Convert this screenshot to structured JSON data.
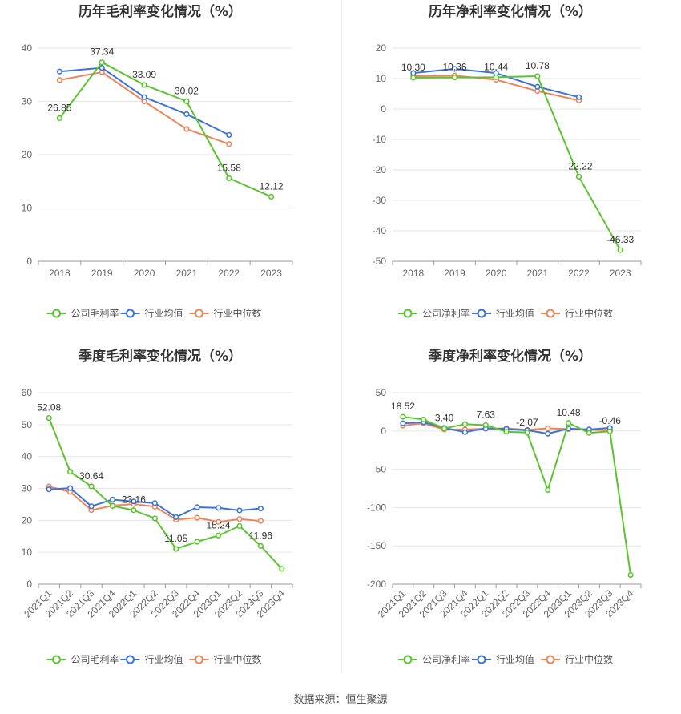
{
  "colors": {
    "company": "#5ac42e",
    "industry_avg": "#3b73d8",
    "industry_median": "#f08458",
    "grid": "#e6e6e6",
    "axis": "#999999"
  },
  "source": "数据来源：恒生聚源",
  "legend": {
    "company_gross": "公司毛利率",
    "company_net": "公司净利率",
    "avg": "行业均值",
    "median": "行业中位数"
  },
  "chart_data": [
    {
      "type": "line",
      "title": "历年毛利率变化情况（%）",
      "categories": [
        "2018",
        "2019",
        "2020",
        "2021",
        "2022",
        "2023"
      ],
      "ylim": [
        0,
        40
      ],
      "yticks": [
        0,
        10,
        20,
        30,
        40
      ],
      "grid": true,
      "legend_position": "bottom",
      "series": [
        {
          "name": "公司毛利率",
          "values": [
            26.85,
            37.34,
            33.09,
            30.02,
            15.58,
            12.12
          ],
          "labels": [
            "26.85",
            "37.34",
            "33.09",
            "30.02",
            "15.58",
            "12.12"
          ]
        },
        {
          "name": "行业均值",
          "values": [
            35.6,
            36.3,
            30.8,
            27.6,
            23.7,
            null
          ]
        },
        {
          "name": "行业中位数",
          "values": [
            34.0,
            35.5,
            30.0,
            24.8,
            22.0,
            null
          ]
        }
      ]
    },
    {
      "type": "line",
      "title": "历年净利率变化情况（%）",
      "categories": [
        "2018",
        "2019",
        "2020",
        "2021",
        "2022",
        "2023"
      ],
      "ylim": [
        -50,
        20
      ],
      "yticks": [
        -50,
        -40,
        -30,
        -20,
        -10,
        0,
        10,
        20
      ],
      "grid": true,
      "legend_position": "bottom",
      "series": [
        {
          "name": "公司净利率",
          "values": [
            10.3,
            10.36,
            10.44,
            10.78,
            -22.22,
            -46.33
          ],
          "labels": [
            "10.30",
            "10.36",
            "10.44",
            "10.78",
            "-22.22",
            "-46.33"
          ]
        },
        {
          "name": "行业均值",
          "values": [
            11.8,
            13.2,
            11.8,
            7.3,
            3.9,
            null
          ]
        },
        {
          "name": "行业中位数",
          "values": [
            10.8,
            11.0,
            9.6,
            5.9,
            2.8,
            null
          ]
        }
      ]
    },
    {
      "type": "line",
      "title": "季度毛利率变化情况（%）",
      "categories": [
        "2021Q1",
        "2021Q2",
        "2021Q3",
        "2021Q4",
        "2022Q1",
        "2022Q2",
        "2022Q3",
        "2022Q4",
        "2023Q1",
        "2023Q2",
        "2023Q3",
        "2023Q4"
      ],
      "ylim": [
        0,
        60
      ],
      "yticks": [
        0,
        10,
        20,
        30,
        40,
        50,
        60
      ],
      "grid": true,
      "legend_position": "bottom",
      "series": [
        {
          "name": "公司毛利率",
          "values": [
            52.08,
            35.2,
            30.64,
            24.5,
            23.16,
            20.6,
            11.05,
            13.3,
            15.24,
            18.2,
            11.96,
            4.8
          ],
          "labels": [
            "52.08",
            "",
            "30.64",
            "",
            "23.16",
            "",
            "11.05",
            "",
            "15.24",
            "",
            "11.96",
            ""
          ]
        },
        {
          "name": "行业均值",
          "values": [
            29.7,
            30.1,
            24.4,
            26.5,
            25.9,
            25.4,
            21.0,
            24.1,
            23.9,
            23.1,
            23.7,
            null
          ]
        },
        {
          "name": "行业中位数",
          "values": [
            30.6,
            28.9,
            23.2,
            24.6,
            25.1,
            24.3,
            20.2,
            20.8,
            19.5,
            20.4,
            19.8,
            null
          ]
        }
      ]
    },
    {
      "type": "line",
      "title": "季度净利率变化情况（%）",
      "categories": [
        "2021Q1",
        "2021Q2",
        "2021Q3",
        "2021Q4",
        "2022Q1",
        "2022Q2",
        "2022Q3",
        "2022Q4",
        "2023Q1",
        "2023Q2",
        "2023Q3",
        "2023Q4"
      ],
      "ylim": [
        -200,
        50
      ],
      "yticks": [
        -200,
        -150,
        -100,
        -50,
        0,
        50
      ],
      "grid": true,
      "legend_position": "bottom",
      "series": [
        {
          "name": "公司净利率",
          "values": [
            18.52,
            15.0,
            3.4,
            9.0,
            7.63,
            -1.0,
            -2.07,
            -77.0,
            10.48,
            -2.5,
            -0.46,
            -188.0
          ],
          "labels": [
            "18.52",
            "",
            "3.40",
            "",
            "7.63",
            "",
            "-2.07",
            "",
            "10.48",
            "",
            "-0.46",
            ""
          ]
        },
        {
          "name": "行业均值",
          "values": [
            10.0,
            11.5,
            4.0,
            -1.5,
            3.5,
            2.5,
            1.0,
            -3.5,
            3.0,
            2.0,
            4.0,
            null
          ]
        },
        {
          "name": "行业中位数",
          "values": [
            7.0,
            10.0,
            2.0,
            2.0,
            3.0,
            3.5,
            1.5,
            3.5,
            2.5,
            1.5,
            1.0,
            null
          ]
        }
      ]
    }
  ]
}
